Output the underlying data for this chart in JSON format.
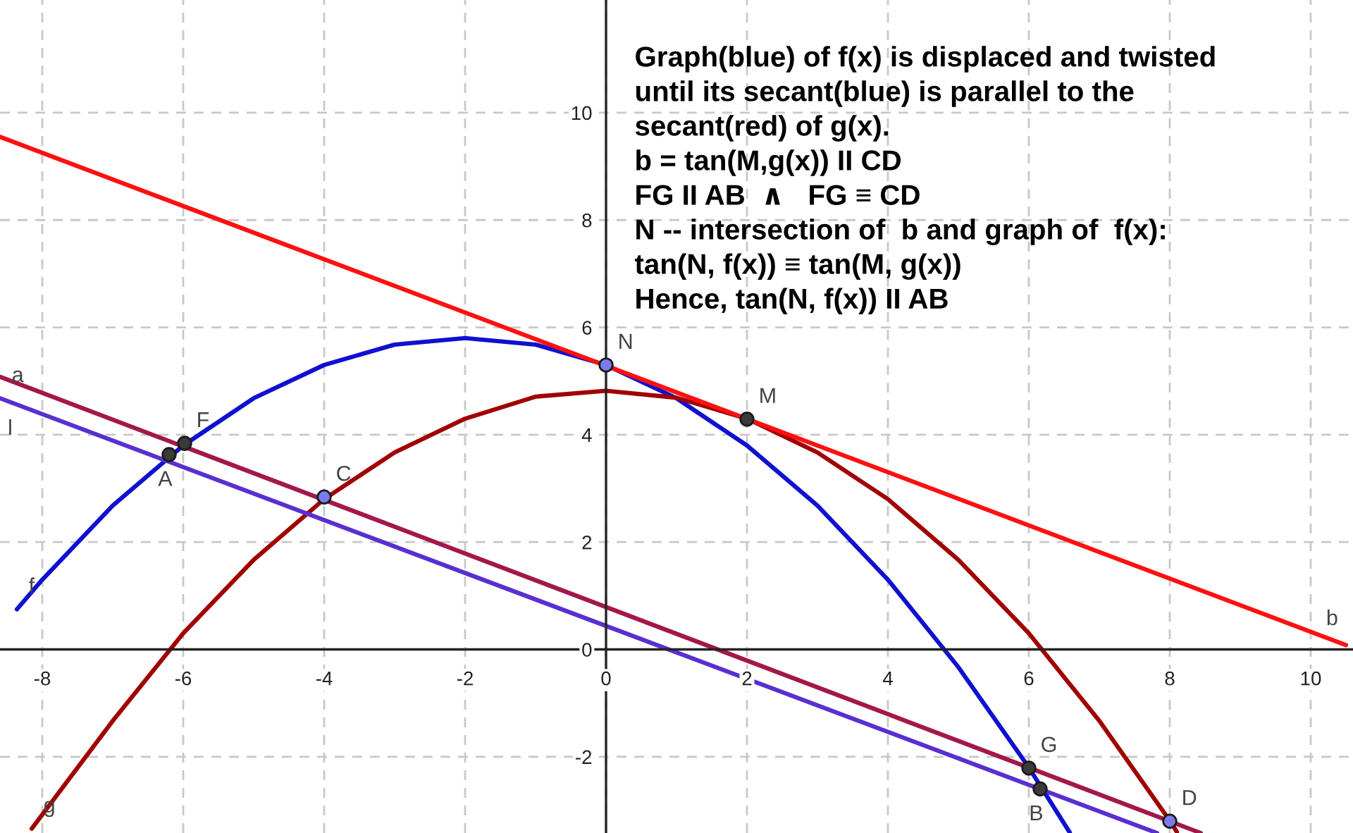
{
  "chart_data": {
    "type": "line",
    "xlim": [
      -8.6,
      10.6
    ],
    "ylim": [
      -3.42,
      12.1
    ],
    "xticks": [
      -8,
      -6,
      -4,
      -2,
      0,
      2,
      4,
      6,
      8,
      10
    ],
    "yticks": [
      -2,
      0,
      2,
      4,
      6,
      8,
      10
    ],
    "grid": true,
    "line_style": "solid",
    "series": [
      {
        "color": "#1010d0",
        "x": [
          -8.36,
          -8,
          -7,
          -6,
          -5,
          -4,
          -3,
          -2,
          -1,
          0,
          1,
          2,
          3,
          4,
          5,
          6,
          6.58
        ],
        "values": [
          0.75,
          1.3,
          2.68,
          3.8,
          4.68,
          5.3,
          5.68,
          5.8,
          5.68,
          5.3,
          4.68,
          3.8,
          2.68,
          1.3,
          -0.33,
          -2.2,
          -3.41
        ]
      },
      {
        "color": "#a00000",
        "x": [
          -8.15,
          -7,
          -6,
          -5,
          -4,
          -3,
          -2,
          -1,
          0,
          1,
          2,
          3,
          4,
          5,
          6,
          7,
          8,
          8.1
        ],
        "values": [
          -3.34,
          -1.33,
          0.3,
          1.67,
          2.8,
          3.67,
          4.3,
          4.71,
          4.82,
          4.69,
          4.3,
          3.67,
          2.8,
          1.67,
          0.3,
          -1.33,
          -3.19,
          -3.4
        ]
      },
      {
        "color": "#ff1010",
        "x": [
          -8.6,
          10.5
        ],
        "values": [
          9.55,
          0.08
        ]
      },
      {
        "color": "#5a2fd0",
        "x": [
          -8.6,
          7.82
        ],
        "values": [
          4.68,
          -3.42
        ]
      },
      {
        "color": "#a3184a",
        "x": [
          -8.6,
          8.44
        ],
        "values": [
          5.08,
          -3.42
        ]
      },
      {
        "type": "scatter",
        "marker": "circle",
        "color": "#3a3a3a",
        "x": [
          -6.2,
          -5.98,
          2.0,
          6.0,
          6.16
        ],
        "values": [
          3.63,
          3.84,
          4.29,
          -2.21,
          -2.6
        ]
      },
      {
        "type": "scatter",
        "marker": "circle",
        "color": "#7b7bf0",
        "x": [
          -4.0,
          0,
          8.0
        ],
        "values": [
          2.84,
          5.3,
          -3.2
        ]
      }
    ],
    "annotations": [
      "Graph(blue) of f(x) is displaced and twisted",
      "until its secant(blue) is parallel to the",
      "secant(red) of g(x).",
      "b = tan(M,g(x)) II CD",
      "FG II AB  ∧   FG ≡ CD",
      "N -- intersection of  b and graph of  f(x):",
      "tan(N, f(x)) ≡ tan(M, g(x))",
      "Hence, tan(N, f(x)) II AB",
      {
        "text": "A",
        "x": -6.2,
        "y": 3.63
      },
      {
        "text": "F",
        "x": -5.98,
        "y": 3.84
      },
      {
        "text": "C",
        "x": -4.0,
        "y": 2.84
      },
      {
        "text": "N",
        "x": 0,
        "y": 5.3
      },
      {
        "text": "M",
        "x": 2.0,
        "y": 4.29
      },
      {
        "text": "G",
        "x": 6.0,
        "y": -2.21
      },
      {
        "text": "B",
        "x": 6.16,
        "y": -2.6
      },
      {
        "text": "D",
        "x": 8.0,
        "y": -3.2
      },
      {
        "text": "f",
        "x": -8.36,
        "y": 0.75
      },
      {
        "text": "g",
        "x": -8.15,
        "y": -3.34
      },
      {
        "text": "b",
        "x": 10.5,
        "y": 0.08
      },
      {
        "text": "a",
        "x": -8.6,
        "y": 4.68
      },
      {
        "text": "l",
        "x": -8.4,
        "y": 4.58
      }
    ]
  }
}
